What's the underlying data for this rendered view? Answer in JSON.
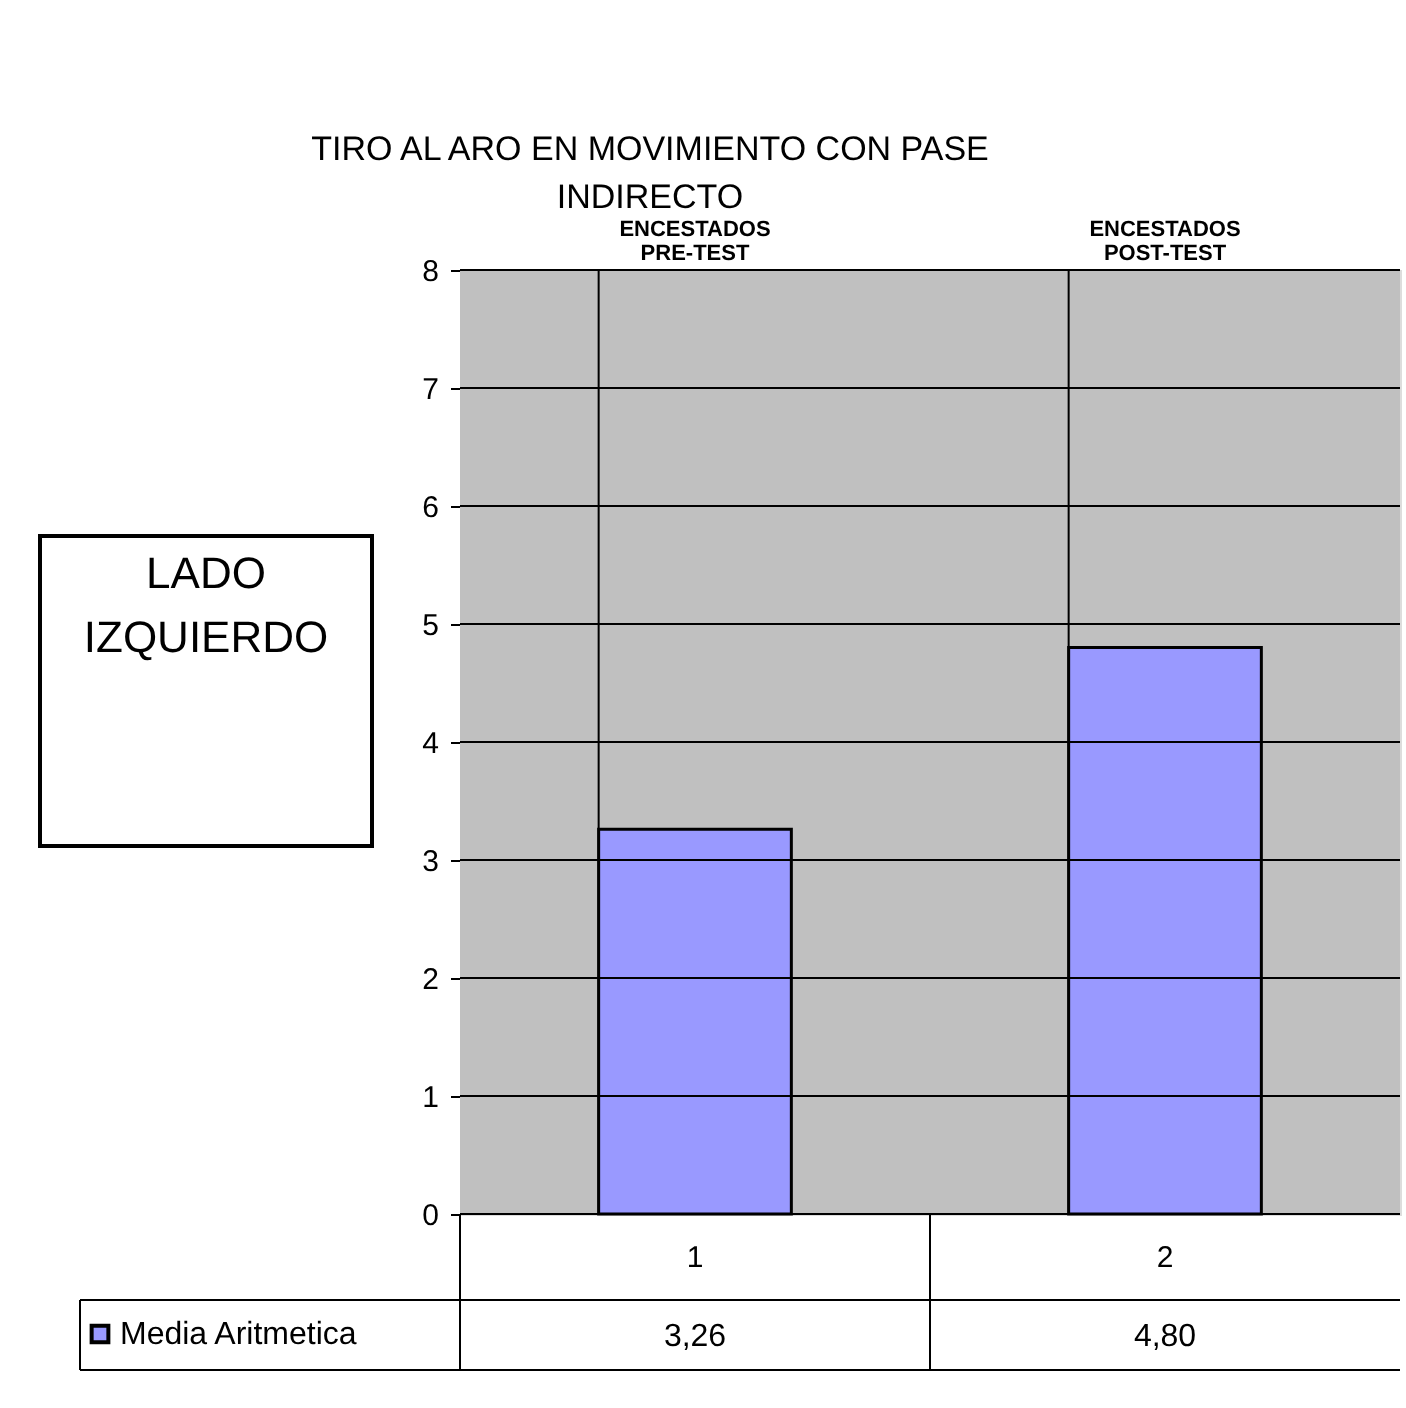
{
  "chart_data": {
    "type": "bar",
    "title": "TIRO AL ARO EN MOVIMIENTO CON PASE INDIRECTO",
    "categories": [
      "1",
      "2"
    ],
    "series": [
      {
        "name": "Media Aritmetica",
        "color": "#9999ff",
        "values": [
          3.26,
          4.8
        ],
        "value_labels": [
          "3,26",
          "4,80"
        ]
      }
    ],
    "ylim": [
      0,
      8
    ],
    "yticks": [
      0,
      1,
      2,
      3,
      4,
      5,
      6,
      7,
      8
    ],
    "grid": true,
    "legend": "bottom",
    "annotations": [
      "ENCESTADOS PRE-TEST",
      "ENCESTADOS POST-TEST",
      "LADO IZQUIERDO"
    ]
  }
}
